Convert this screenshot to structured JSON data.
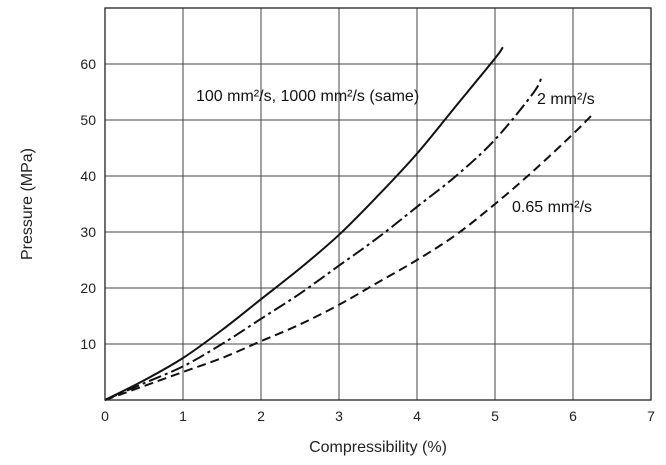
{
  "chart_data": {
    "type": "line",
    "xlabel": "Compressibility (%)",
    "ylabel": "Pressure (MPa)",
    "xlim": [
      0,
      7
    ],
    "ylim": [
      0,
      70
    ],
    "grid": true,
    "x_ticks": [
      "0",
      "1",
      "2",
      "3",
      "4",
      "5",
      "6",
      "7"
    ],
    "y_ticks": [
      "10",
      "20",
      "30",
      "40",
      "50",
      "60"
    ],
    "series": [
      {
        "name": "100 mm²/s, 1000 mm²/s (same)",
        "label_text": "100 mm²/s, 1000 mm²/s (same)",
        "style": "solid",
        "x": [
          0,
          0.5,
          1.0,
          1.5,
          2.0,
          2.5,
          3.0,
          3.5,
          4.0,
          4.5,
          5.0,
          5.1
        ],
        "y": [
          0,
          3.5,
          7.5,
          12.5,
          18,
          23.5,
          29.5,
          36.5,
          44,
          52.5,
          61,
          63
        ]
      },
      {
        "name": "2 mm²/s",
        "label_text": "2 mm²/s",
        "style": "dashdot",
        "x": [
          0,
          0.5,
          1.0,
          1.5,
          2.0,
          2.5,
          3.0,
          3.5,
          4.0,
          4.5,
          5.0,
          5.5,
          5.6
        ],
        "y": [
          0,
          3,
          6,
          10,
          14.5,
          19,
          24,
          29,
          34.5,
          40,
          46.5,
          55,
          58
        ]
      },
      {
        "name": "0.65 mm²/s",
        "label_text": "0.65 mm²/s",
        "style": "dashed",
        "x": [
          0,
          0.5,
          1.0,
          1.5,
          2.0,
          2.5,
          3.0,
          3.5,
          4.0,
          4.5,
          5.0,
          5.5,
          6.0,
          6.25
        ],
        "y": [
          0,
          2.5,
          5,
          7.5,
          10.5,
          13.5,
          17,
          21,
          25,
          29.5,
          35,
          41,
          47.5,
          51
        ]
      }
    ]
  }
}
